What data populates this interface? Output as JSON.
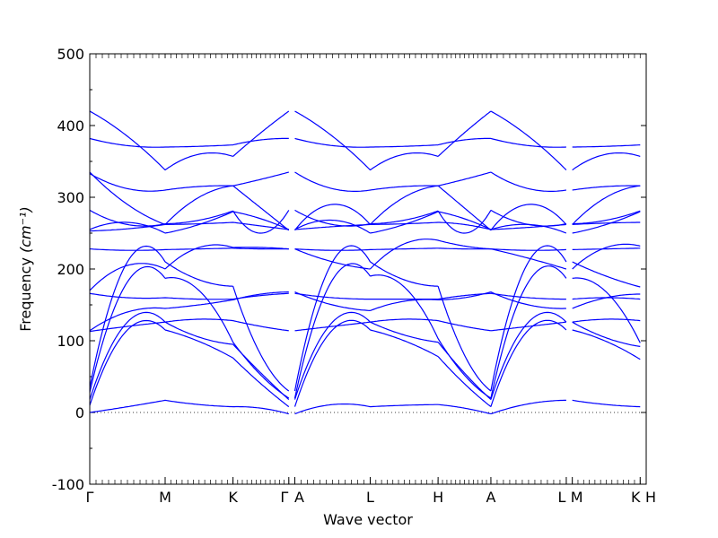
{
  "chart_data": {
    "type": "line",
    "title": "",
    "xlabel": "Wave vector",
    "ylabel": "Frequency",
    "ylabel_unit": "(cm⁻¹)",
    "ylim": [
      -100,
      500
    ],
    "yticks": [
      -100,
      0,
      100,
      200,
      300,
      400,
      500
    ],
    "grid": false,
    "legend": "none",
    "color": "#0000ff",
    "zero_line": true,
    "kpoints": [
      {
        "label": "Γ",
        "x": 0.0
      },
      {
        "label": "M",
        "x": 1.0
      },
      {
        "label": "K",
        "x": 1.9
      },
      {
        "label": "Γ",
        "x": 2.64
      },
      {
        "label": "A",
        "x": 2.72
      },
      {
        "label": "L",
        "x": 3.72
      },
      {
        "label": "H",
        "x": 4.62
      },
      {
        "label": "A",
        "x": 5.32
      },
      {
        "label": "L",
        "x": 6.32
      },
      {
        "label": "M",
        "x": 6.4
      },
      {
        "label": "K",
        "x": 7.3
      },
      {
        "label": "H",
        "x": 7.38
      }
    ],
    "tick_labels_printed": [
      "Γ",
      "M",
      "K",
      "ΓA",
      "L",
      "H",
      "A",
      "LM",
      "KH"
    ],
    "segments": [
      {
        "x0": 0.0,
        "x1": 1.0
      },
      {
        "x0": 1.0,
        "x1": 1.9
      },
      {
        "x0": 1.9,
        "x1": 2.64
      },
      {
        "x0": 2.72,
        "x1": 3.72
      },
      {
        "x0": 3.72,
        "x1": 4.62
      },
      {
        "x0": 4.62,
        "x1": 5.32
      },
      {
        "x0": 5.32,
        "x1": 6.32
      },
      {
        "x0": 6.4,
        "x1": 7.3
      }
    ],
    "bands": [
      {
        "name": "band-1",
        "segments": [
          [
            0,
            8,
            17
          ],
          [
            17,
            11,
            8
          ],
          [
            8,
            6,
            -2
          ],
          [
            -2,
            11,
            8
          ],
          [
            8,
            10,
            11
          ],
          [
            11,
            6,
            -2
          ],
          [
            -2,
            12,
            17
          ],
          [
            17,
            11,
            8
          ]
        ]
      },
      {
        "name": "band-2",
        "segments": [
          [
            10,
            115,
            115
          ],
          [
            115,
            99,
            76
          ],
          [
            76,
            40,
            8
          ],
          [
            8,
            115,
            115
          ],
          [
            115,
            100,
            78
          ],
          [
            78,
            40,
            8
          ],
          [
            8,
            115,
            115
          ],
          [
            115,
            99,
            74
          ]
        ]
      },
      {
        "name": "band-3",
        "segments": [
          [
            18,
            126,
            126
          ],
          [
            126,
            105,
            95
          ],
          [
            95,
            55,
            18
          ],
          [
            18,
            126,
            126
          ],
          [
            126,
            108,
            98
          ],
          [
            98,
            55,
            18
          ],
          [
            18,
            126,
            126
          ],
          [
            126,
            104,
            92
          ]
        ]
      },
      {
        "name": "band-4",
        "segments": [
          [
            28,
            182,
            187
          ],
          [
            187,
            170,
            98
          ],
          [
            98,
            52,
            20
          ],
          [
            20,
            185,
            190
          ],
          [
            190,
            175,
            103
          ],
          [
            103,
            52,
            20
          ],
          [
            20,
            182,
            187
          ],
          [
            187,
            168,
            97
          ]
        ]
      },
      {
        "name": "band-5",
        "segments": [
          [
            35,
            210,
            210
          ],
          [
            210,
            185,
            176
          ],
          [
            176,
            80,
            30
          ],
          [
            30,
            210,
            210
          ],
          [
            210,
            185,
            176
          ],
          [
            176,
            80,
            30
          ],
          [
            30,
            210,
            210
          ],
          [
            210,
            190,
            175
          ]
        ]
      },
      {
        "name": "band-6",
        "segments": [
          [
            113,
            120,
            126
          ],
          [
            126,
            130,
            128
          ],
          [
            128,
            120,
            114
          ],
          [
            114,
            120,
            126
          ],
          [
            126,
            130,
            128
          ],
          [
            128,
            120,
            114
          ],
          [
            114,
            120,
            126
          ],
          [
            126,
            130,
            128
          ]
        ]
      },
      {
        "name": "band-7",
        "segments": [
          [
            114,
            140,
            145
          ],
          [
            145,
            150,
            157
          ],
          [
            157,
            165,
            168
          ],
          [
            168,
            150,
            142
          ],
          [
            142,
            155,
            157
          ],
          [
            157,
            160,
            168
          ],
          [
            168,
            150,
            145
          ],
          [
            145,
            160,
            165
          ]
        ]
      },
      {
        "name": "band-8",
        "segments": [
          [
            166,
            160,
            160
          ],
          [
            160,
            158,
            158
          ],
          [
            158,
            163,
            166
          ],
          [
            166,
            160,
            158
          ],
          [
            158,
            158,
            158
          ],
          [
            158,
            163,
            166
          ],
          [
            166,
            160,
            158
          ],
          [
            158,
            160,
            158
          ]
        ]
      },
      {
        "name": "band-9",
        "segments": [
          [
            170,
            205,
            200
          ],
          [
            200,
            230,
            230
          ],
          [
            230,
            230,
            228
          ],
          [
            228,
            210,
            200
          ],
          [
            200,
            235,
            240
          ],
          [
            240,
            232,
            228
          ],
          [
            228,
            215,
            200
          ],
          [
            200,
            230,
            232
          ]
        ]
      },
      {
        "name": "band-10",
        "segments": [
          [
            228,
            226,
            227
          ],
          [
            227,
            228,
            229
          ],
          [
            229,
            228,
            228
          ],
          [
            228,
            226,
            227
          ],
          [
            227,
            228,
            229
          ],
          [
            229,
            228,
            228
          ],
          [
            228,
            226,
            227
          ],
          [
            227,
            228,
            229
          ]
        ]
      },
      {
        "name": "band-11",
        "segments": [
          [
            253,
            256,
            262
          ],
          [
            262,
            263,
            265
          ],
          [
            265,
            260,
            255
          ],
          [
            255,
            259,
            262
          ],
          [
            262,
            263,
            265
          ],
          [
            265,
            262,
            255
          ],
          [
            255,
            258,
            262
          ],
          [
            262,
            264,
            265
          ]
        ]
      },
      {
        "name": "band-12",
        "segments": [
          [
            255,
            265,
            250
          ],
          [
            250,
            262,
            280
          ],
          [
            280,
            270,
            255
          ],
          [
            255,
            268,
            250
          ],
          [
            250,
            262,
            280
          ],
          [
            280,
            270,
            255
          ],
          [
            255,
            262,
            250
          ],
          [
            250,
            262,
            280
          ]
        ]
      },
      {
        "name": "band-13",
        "segments": [
          [
            282,
            262,
            263
          ],
          [
            263,
            268,
            281
          ],
          [
            281,
            250,
            282
          ],
          [
            282,
            262,
            263
          ],
          [
            263,
            268,
            281
          ],
          [
            281,
            250,
            282
          ],
          [
            282,
            262,
            263
          ],
          [
            263,
            268,
            281
          ]
        ]
      },
      {
        "name": "band-14",
        "segments": [
          [
            333,
            312,
            310
          ],
          [
            310,
            315,
            316
          ],
          [
            316,
            325,
            335
          ],
          [
            335,
            312,
            310
          ],
          [
            310,
            315,
            316
          ],
          [
            316,
            325,
            335
          ],
          [
            335,
            312,
            310
          ],
          [
            310,
            315,
            316
          ]
        ]
      },
      {
        "name": "band-15",
        "segments": [
          [
            335,
            290,
            262
          ],
          [
            262,
            300,
            316
          ],
          [
            316,
            285,
            254
          ],
          [
            254,
            290,
            262
          ],
          [
            262,
            300,
            316
          ],
          [
            316,
            285,
            254
          ],
          [
            254,
            290,
            262
          ],
          [
            262,
            300,
            316
          ]
        ]
      },
      {
        "name": "band-16",
        "segments": [
          [
            382,
            372,
            370
          ],
          [
            370,
            371,
            373
          ],
          [
            373,
            380,
            382
          ],
          [
            382,
            372,
            370
          ],
          [
            370,
            371,
            373
          ],
          [
            373,
            380,
            382
          ],
          [
            382,
            372,
            370
          ],
          [
            370,
            371,
            373
          ]
        ]
      },
      {
        "name": "band-17",
        "segments": [
          [
            420,
            385,
            338
          ],
          [
            338,
            360,
            357
          ],
          [
            357,
            390,
            420
          ],
          [
            420,
            385,
            338
          ],
          [
            338,
            360,
            357
          ],
          [
            357,
            390,
            420
          ],
          [
            420,
            385,
            338
          ],
          [
            338,
            360,
            357
          ]
        ]
      }
    ]
  }
}
